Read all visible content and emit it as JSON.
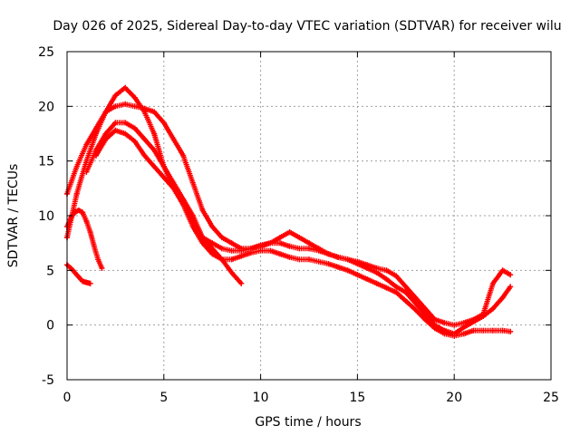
{
  "chart_data": {
    "type": "scatter",
    "title": "Day 026 of 2025, Sidereal Day-to-day VTEC variation (SDTVAR) for receiver wilu",
    "xlabel": "GPS time / hours",
    "ylabel": "SDTVAR / TECUs",
    "xlim": [
      0,
      25
    ],
    "ylim": [
      -5,
      25
    ],
    "xticks": [
      "0",
      "5",
      "10",
      "15",
      "20",
      "25"
    ],
    "yticks": [
      "-5",
      "0",
      "5",
      "10",
      "15",
      "20",
      "25"
    ],
    "grid": true,
    "legend": "none",
    "marker": "+",
    "series_color": "#ff0000",
    "series": [
      {
        "name": "track-1",
        "x": [
          0.0,
          0.5,
          1.0,
          1.5,
          2.0,
          2.5,
          3.0,
          3.5,
          4.0,
          4.5,
          5.0,
          5.5,
          6.0,
          6.5,
          7.0,
          7.5,
          8.0,
          8.5,
          9.0
        ],
        "y": [
          8.0,
          12.0,
          15.0,
          17.5,
          19.5,
          21.0,
          21.7,
          20.8,
          19.5,
          17.5,
          14.5,
          12.5,
          11.5,
          10.0,
          8.0,
          7.0,
          6.0,
          4.8,
          3.8
        ]
      },
      {
        "name": "track-2",
        "x": [
          0.0,
          0.5,
          1.0,
          1.5,
          2.0,
          2.5,
          3.0,
          3.5,
          4.0,
          4.5,
          5.0,
          5.5,
          6.0,
          6.5,
          7.0,
          7.5,
          8.0,
          8.5,
          9.0,
          9.5,
          10.0,
          10.5,
          11.0,
          11.5,
          12.0,
          12.5,
          13.0,
          13.5,
          14.0,
          14.5,
          15.0,
          15.5,
          16.0,
          16.5,
          17.0,
          17.5,
          18.0,
          18.5,
          19.0,
          19.5,
          20.0,
          20.5,
          21.0,
          21.5,
          22.0,
          22.5,
          22.9
        ],
        "y": [
          12.0,
          14.5,
          16.5,
          18.0,
          19.5,
          20.0,
          20.2,
          20.0,
          19.8,
          19.5,
          18.5,
          17.0,
          15.5,
          13.0,
          10.5,
          9.0,
          8.0,
          7.5,
          7.0,
          7.0,
          7.2,
          7.5,
          8.0,
          8.5,
          8.0,
          7.5,
          7.0,
          6.5,
          6.2,
          6.0,
          5.8,
          5.5,
          5.2,
          5.0,
          4.5,
          3.5,
          2.5,
          1.5,
          0.5,
          0.2,
          0.0,
          0.2,
          0.5,
          1.0,
          3.8,
          5.0,
          4.6
        ]
      },
      {
        "name": "track-3",
        "x": [
          1.0,
          1.5,
          2.0,
          2.5,
          3.0,
          3.5,
          4.0,
          4.5,
          5.0,
          5.5,
          6.0,
          6.5,
          7.0,
          7.5,
          8.0,
          8.5,
          9.0,
          9.5,
          10.0,
          10.5,
          11.0,
          11.5,
          12.0,
          12.5,
          13.0,
          13.5,
          14.0,
          14.5,
          15.0,
          15.5,
          16.0,
          16.5,
          17.0,
          17.5,
          18.0,
          18.5,
          19.0,
          19.5,
          20.0,
          20.5,
          21.0,
          21.5,
          22.0,
          22.5,
          22.9
        ],
        "y": [
          14.0,
          16.0,
          17.5,
          18.5,
          18.5,
          18.0,
          17.0,
          16.0,
          14.5,
          13.0,
          11.5,
          9.5,
          8.0,
          7.5,
          7.0,
          6.8,
          6.8,
          7.0,
          7.3,
          7.5,
          7.5,
          7.2,
          7.0,
          7.0,
          6.8,
          6.5,
          6.2,
          6.0,
          5.6,
          5.2,
          4.8,
          4.2,
          3.5,
          3.0,
          2.0,
          1.0,
          0.0,
          -0.5,
          -0.8,
          -0.2,
          0.3,
          0.8,
          1.5,
          2.5,
          3.5
        ]
      },
      {
        "name": "track-4",
        "x": [
          1.5,
          2.0,
          2.5,
          3.0,
          3.5,
          4.0,
          4.5,
          5.0,
          5.5,
          6.0,
          6.5,
          7.0,
          7.5,
          8.0,
          8.5,
          9.0,
          9.5,
          10.0,
          10.5,
          11.0,
          11.5,
          12.0,
          12.5,
          13.0,
          13.5,
          14.0,
          14.5,
          15.0,
          15.5,
          16.0,
          16.5,
          17.0,
          17.5,
          18.0,
          18.5,
          19.0,
          19.5,
          20.0,
          20.5,
          21.0,
          21.5,
          22.0,
          22.5,
          22.9
        ],
        "y": [
          15.5,
          17.0,
          17.8,
          17.5,
          16.8,
          15.5,
          14.5,
          13.5,
          12.5,
          11.0,
          9.0,
          7.5,
          6.5,
          6.0,
          6.0,
          6.3,
          6.6,
          6.8,
          6.8,
          6.5,
          6.2,
          6.0,
          6.0,
          5.8,
          5.6,
          5.3,
          5.0,
          4.6,
          4.2,
          3.8,
          3.4,
          3.0,
          2.2,
          1.4,
          0.5,
          -0.3,
          -0.8,
          -1.0,
          -0.8,
          -0.5,
          -0.5,
          -0.5,
          -0.5,
          -0.6
        ]
      },
      {
        "name": "track-5",
        "x": [
          0.0,
          0.2,
          0.4,
          0.6,
          0.8,
          1.0,
          1.2,
          1.4,
          1.6,
          1.8
        ],
        "y": [
          9.0,
          9.8,
          10.3,
          10.5,
          10.3,
          9.5,
          8.5,
          7.2,
          6.0,
          5.2
        ]
      },
      {
        "name": "track-6",
        "x": [
          0.0,
          0.2,
          0.4,
          0.6,
          0.8,
          1.0,
          1.2
        ],
        "y": [
          5.5,
          5.2,
          4.8,
          4.4,
          4.0,
          3.9,
          3.8
        ]
      }
    ]
  }
}
